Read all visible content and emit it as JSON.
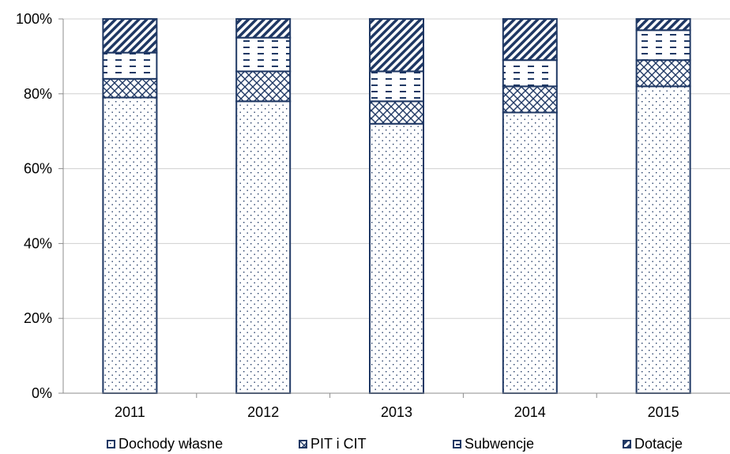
{
  "chart_data": {
    "type": "bar",
    "stacked": true,
    "percent_stacked": true,
    "categories": [
      "2011",
      "2012",
      "2013",
      "2014",
      "2015"
    ],
    "series": [
      {
        "name": "Dochody własne",
        "values": [
          79,
          78,
          72,
          75,
          82
        ],
        "pattern": "dots"
      },
      {
        "name": "PIT i CIT",
        "values": [
          5,
          8,
          6,
          7,
          7
        ],
        "pattern": "crosshatch"
      },
      {
        "name": "Subwencje",
        "values": [
          7,
          9,
          8,
          7,
          8
        ],
        "pattern": "dashes"
      },
      {
        "name": "Dotacje",
        "values": [
          9,
          5,
          14,
          11,
          3
        ],
        "pattern": "diagonal"
      }
    ],
    "y_ticks": [
      "0%",
      "20%",
      "40%",
      "60%",
      "80%",
      "100%"
    ],
    "ylim": [
      0,
      100
    ],
    "grid": true,
    "legend_position": "bottom",
    "colors": {
      "stroke": "#1f3864",
      "grid": "#d0d0d0",
      "axis": "#8c8c8c"
    }
  }
}
